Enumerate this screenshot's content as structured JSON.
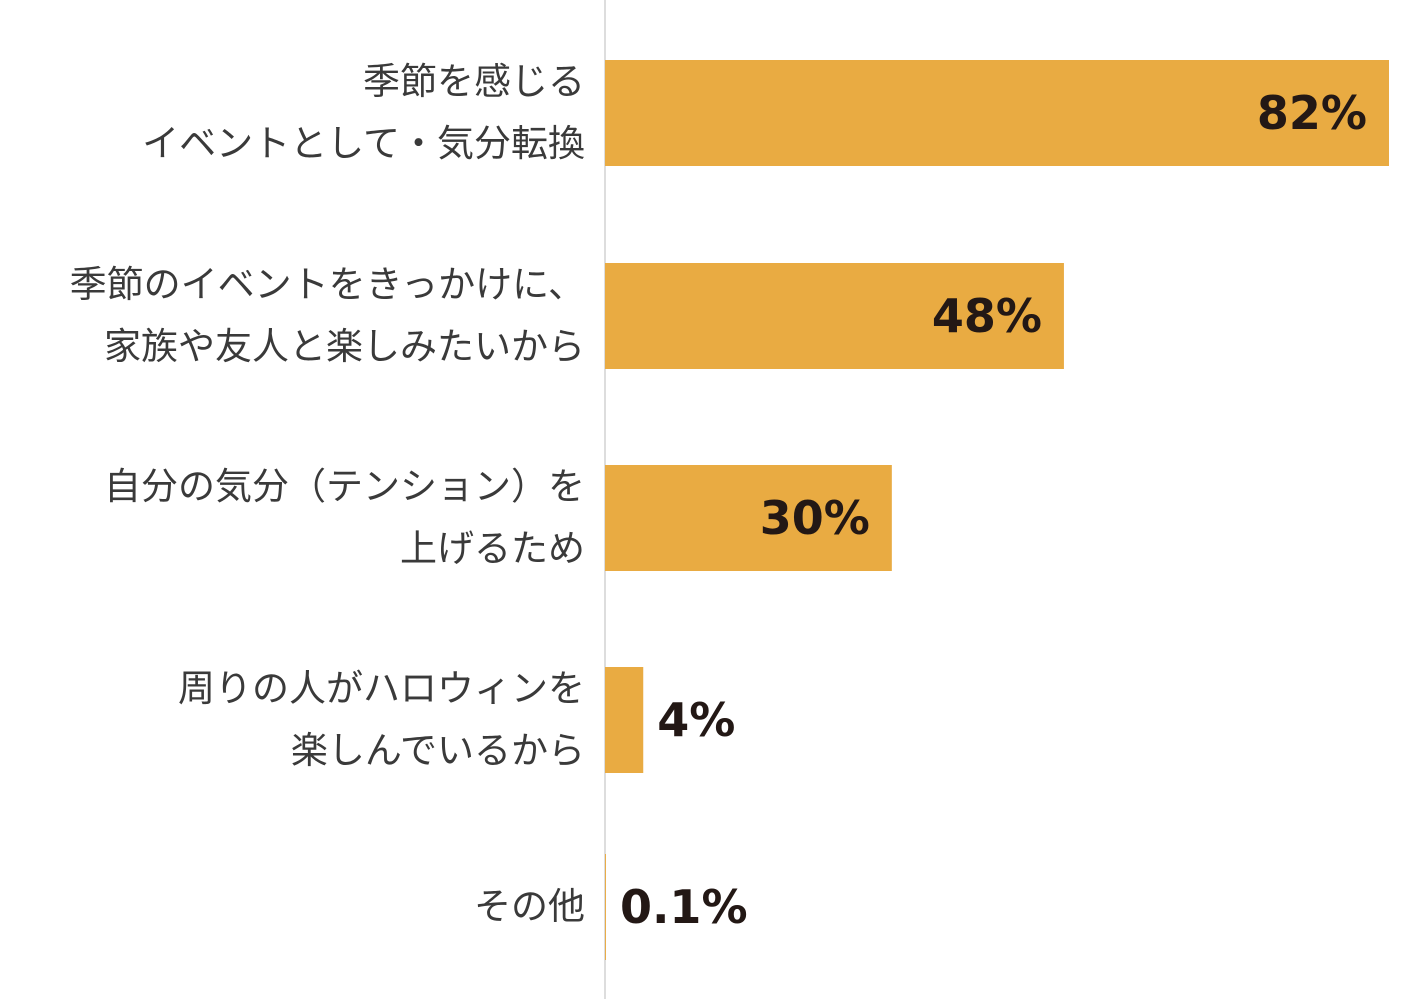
{
  "chart_data": {
    "type": "hbar",
    "categories": [
      "季節を感じる\nイベントとして・気分転換",
      "季節のイベントをきっかけに、\n家族や友人と楽しみたいから",
      "自分の気分（テンション）を\n上げるため",
      "周りの人がハロウィンを\n楽しんでいるから",
      "その他"
    ],
    "values": [
      82,
      48,
      30,
      4,
      0.1
    ],
    "value_labels": [
      "82%",
      "48%",
      "30%",
      "4%",
      "0.1%"
    ],
    "color": "#e9ab42"
  }
}
